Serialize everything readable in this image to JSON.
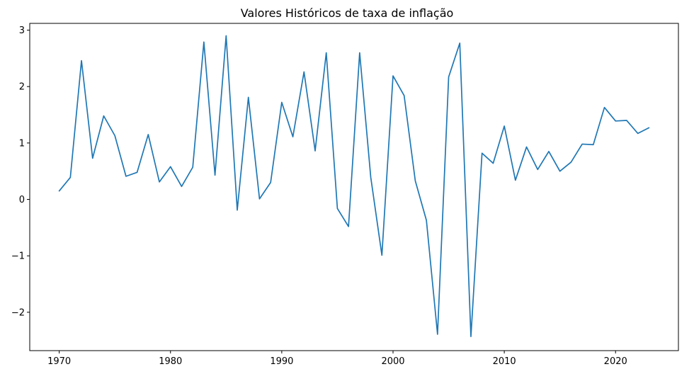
{
  "chart_data": {
    "type": "line",
    "title": "Valores Históricos de taxa de inflação",
    "xlabel": "",
    "ylabel": "",
    "x_ticks": [
      "1970",
      "1980",
      "1990",
      "2000",
      "2010",
      "2020"
    ],
    "y_ticks": [
      "3",
      "2",
      "1",
      "0",
      "−1",
      "−2"
    ],
    "xlim": [
      1967.35,
      2025.65
    ],
    "ylim": [
      -2.68,
      3.12
    ],
    "grid": false,
    "legend": "none",
    "series": [
      {
        "color": "#1f77b4",
        "x": [
          1970,
          1971,
          1972,
          1973,
          1974,
          1975,
          1976,
          1977,
          1978,
          1979,
          1980,
          1981,
          1982,
          1983,
          1984,
          1985,
          1986,
          1987,
          1988,
          1989,
          1990,
          1991,
          1992,
          1993,
          1994,
          1995,
          1996,
          1997,
          1998,
          1999,
          2000,
          2001,
          2002,
          2003,
          2004,
          2005,
          2006,
          2007,
          2008,
          2009,
          2010,
          2011,
          2012,
          2013,
          2014,
          2015,
          2016,
          2017,
          2018,
          2019,
          2020,
          2021,
          2022,
          2023
        ],
        "values": [
          0.15,
          0.39,
          2.46,
          0.73,
          1.48,
          1.13,
          0.41,
          0.48,
          1.15,
          0.31,
          0.58,
          0.23,
          0.57,
          2.79,
          0.43,
          2.9,
          -0.19,
          1.81,
          0.01,
          0.3,
          1.72,
          1.11,
          2.26,
          0.86,
          2.6,
          -0.16,
          -0.48,
          2.6,
          0.39,
          -0.99,
          2.19,
          1.84,
          0.33,
          -0.37,
          -2.39,
          2.17,
          2.77,
          -2.43,
          0.82,
          0.64,
          1.3,
          0.34,
          0.93,
          0.53,
          0.85,
          0.5,
          0.66,
          0.98,
          0.97,
          1.63,
          1.39,
          1.4,
          1.17,
          1.27
        ]
      }
    ]
  }
}
